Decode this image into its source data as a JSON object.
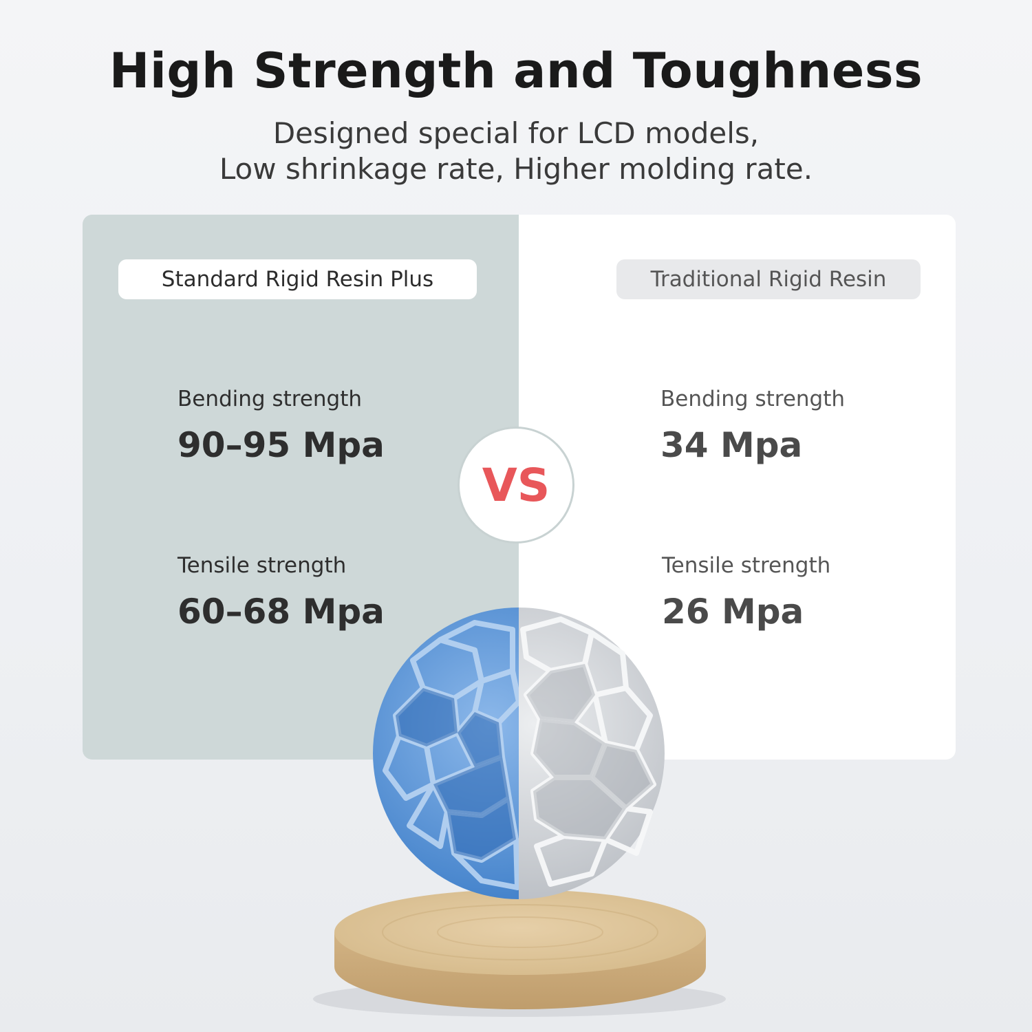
{
  "title": "High Strength and Toughness",
  "subtitle": {
    "line1": "Designed special for LCD models,",
    "line2": "Low shrinkage rate, Higher molding rate."
  },
  "left": {
    "name": "Standard Rigid Resin Plus",
    "bending_label": "Bending strength",
    "bending_value": "90–95 Mpa",
    "tensile_label": "Tensile strength",
    "tensile_value": "60–68 Mpa"
  },
  "right": {
    "name": "Traditional Rigid Resin",
    "bending_label": "Bending strength",
    "bending_value": "34 Mpa",
    "tensile_label": "Tensile strength",
    "tensile_value": "26 Mpa"
  },
  "vs_label": "VS",
  "colors": {
    "accent_vs": "#e8575a",
    "left_panel": "#ced8d8",
    "right_panel": "#ffffff",
    "blue_resin": "#4f8fd6",
    "grey_resin": "#c9cdd2",
    "wood": "#dcc39a"
  }
}
